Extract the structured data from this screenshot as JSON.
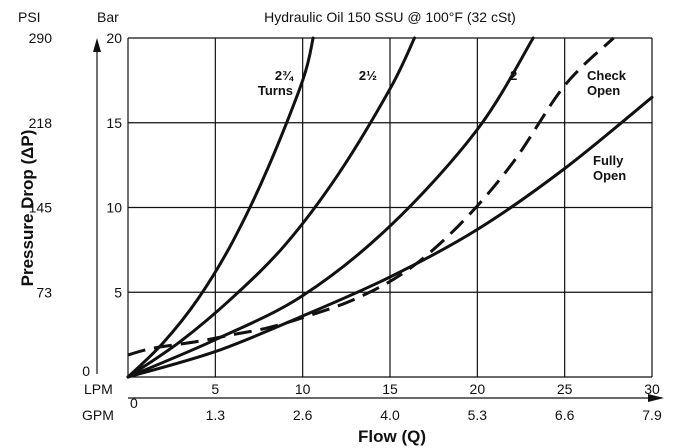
{
  "chart_data": {
    "type": "line",
    "title": "Hydraulic Oil 150 SSU @ 100°F (32 cSt)",
    "xlabel": "Flow (Q)",
    "ylabel": "Pressure Drop (ΔP)",
    "x_unit_primary": "LPM",
    "x_unit_secondary": "GPM",
    "y_unit_primary": "Bar",
    "y_unit_secondary": "PSI",
    "xlim": [
      0,
      30
    ],
    "ylim": [
      0,
      20
    ],
    "x_ticks": [
      5,
      10,
      15,
      20,
      25,
      30
    ],
    "x_zero_label": "0",
    "x_ticks_secondary": [
      "1.3",
      "2.6",
      "4.0",
      "5.3",
      "6.6",
      "7.9"
    ],
    "y_ticks": [
      5,
      10,
      15,
      20
    ],
    "y_ticks_secondary": [
      "73",
      "145",
      "218",
      "290"
    ],
    "y_zero_label": "0",
    "grid": true,
    "series": [
      {
        "name": "2¾ Turns",
        "label_lines": [
          "2¾",
          "Turns"
        ],
        "style": "solid",
        "x": [
          0,
          2,
          4,
          6,
          8,
          10,
          10.6
        ],
        "y": [
          0,
          2.0,
          4.6,
          8.0,
          12.3,
          17.5,
          20
        ]
      },
      {
        "name": "2½",
        "label_lines": [
          "2½"
        ],
        "style": "solid",
        "x": [
          0,
          3,
          6,
          9,
          12,
          15,
          16.4
        ],
        "y": [
          0,
          2.1,
          4.7,
          7.8,
          11.9,
          17.0,
          20
        ]
      },
      {
        "name": "2",
        "label_lines": [
          "2"
        ],
        "style": "solid",
        "x": [
          0,
          5,
          10,
          15,
          20,
          23.2
        ],
        "y": [
          0,
          2.2,
          4.8,
          8.9,
          14.6,
          20
        ]
      },
      {
        "name": "Check Open",
        "label_lines": [
          "Check",
          "Open"
        ],
        "style": "dashed",
        "x": [
          0,
          1,
          2,
          4,
          6,
          8,
          10,
          13,
          16,
          19,
          22,
          25,
          27.8
        ],
        "y": [
          1.3,
          1.6,
          1.8,
          2.1,
          2.5,
          2.9,
          3.5,
          4.6,
          6.3,
          9.0,
          12.6,
          17.2,
          20
        ]
      },
      {
        "name": "Fully Open",
        "label_lines": [
          "Fully",
          "Open"
        ],
        "style": "solid",
        "x": [
          0,
          5,
          10,
          15,
          20,
          25,
          30
        ],
        "y": [
          0,
          1.5,
          3.6,
          5.9,
          8.7,
          12.3,
          16.5
        ]
      }
    ]
  }
}
